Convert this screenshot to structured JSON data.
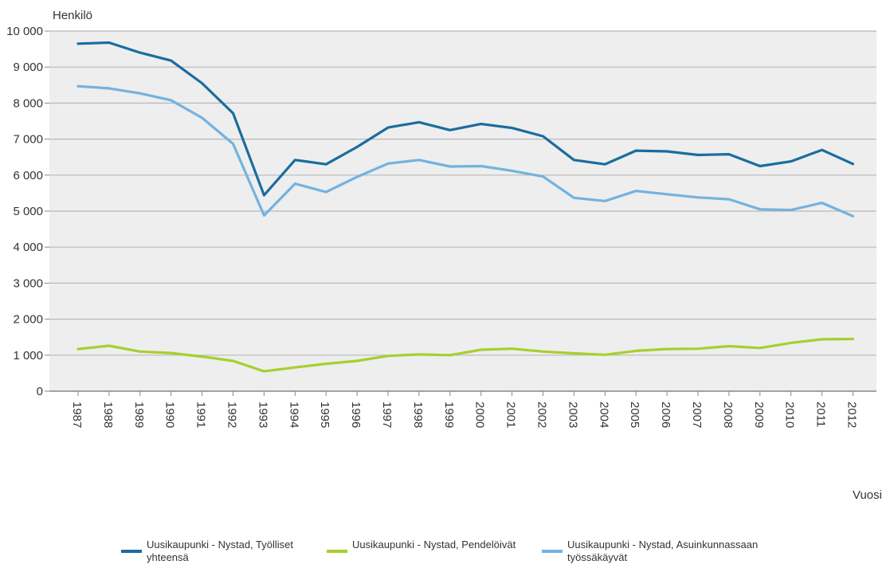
{
  "chart_data": {
    "type": "line",
    "ylabel": "Henkilö",
    "xlabel": "Vuosi",
    "ylim": [
      0,
      10000
    ],
    "yticks": [
      0,
      1000,
      2000,
      3000,
      4000,
      5000,
      6000,
      7000,
      8000,
      9000,
      10000
    ],
    "yticklabels": [
      "0",
      "1 000",
      "2 000",
      "3 000",
      "4 000",
      "5 000",
      "6 000",
      "7 000",
      "8 000",
      "9 000",
      "10 000"
    ],
    "grid": true,
    "legend": "bottom",
    "categories": [
      "1987",
      "1988",
      "1989",
      "1990",
      "1991",
      "1992",
      "1993",
      "1994",
      "1995",
      "1996",
      "1997",
      "1998",
      "1999",
      "2000",
      "2001",
      "2002",
      "2003",
      "2004",
      "2005",
      "2006",
      "2007",
      "2008",
      "2009",
      "2010",
      "2011",
      "2012"
    ],
    "series": [
      {
        "name": "Uusikaupunki - Nystad, Työlliset yhteensä",
        "name_lines": [
          "Uusikaupunki - Nystad, Työlliset",
          "yhteensä"
        ],
        "color": "#1a6d9d",
        "values": [
          9650,
          9680,
          9400,
          9180,
          8550,
          7720,
          5440,
          6420,
          6300,
          6780,
          7320,
          7470,
          7250,
          7420,
          7310,
          7080,
          6420,
          6300,
          6680,
          6660,
          6560,
          6580,
          6250,
          6380,
          6700,
          6310
        ]
      },
      {
        "name": "Uusikaupunki - Nystad, Pendelöivät",
        "name_lines": [
          "Uusikaupunki - Nystad, Pendelöivät"
        ],
        "color": "#a8cf2e",
        "values": [
          1170,
          1260,
          1100,
          1060,
          960,
          840,
          550,
          660,
          760,
          840,
          980,
          1020,
          1000,
          1150,
          1180,
          1100,
          1050,
          1010,
          1120,
          1170,
          1180,
          1250,
          1200,
          1340,
          1440,
          1450
        ]
      },
      {
        "name": "Uusikaupunki - Nystad, Asuinkunnassaan työssäkäyvät",
        "name_lines": [
          "Uusikaupunki - Nystad, Asuinkunnassaan",
          "työssäkäyvät"
        ],
        "color": "#73b2e0",
        "values": [
          8470,
          8410,
          8270,
          8080,
          7590,
          6870,
          4880,
          5760,
          5530,
          5950,
          6320,
          6420,
          6240,
          6250,
          6120,
          5960,
          5370,
          5280,
          5560,
          5470,
          5380,
          5330,
          5050,
          5030,
          5230,
          4860
        ]
      }
    ]
  }
}
